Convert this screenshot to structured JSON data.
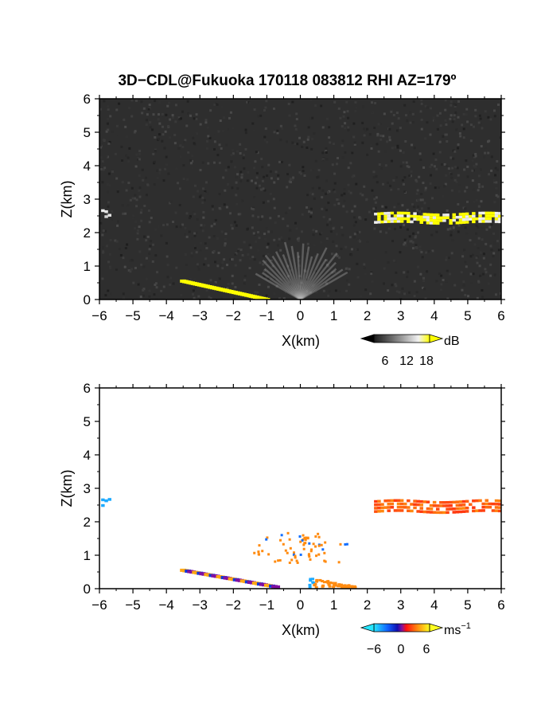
{
  "title": "3D−CDL@Fukuoka 170118 083812 RHI AZ=179º",
  "chart_data": [
    {
      "type": "heatmap",
      "panel": "top",
      "quantity": "signal intensity",
      "xlabel": "X(km)",
      "ylabel": "Z(km)",
      "xlim": [
        -6,
        6
      ],
      "ylim": [
        0,
        6
      ],
      "xticks": [
        "−6",
        "−5",
        "−4",
        "−3",
        "−2",
        "−1",
        "0",
        "1",
        "2",
        "3",
        "4",
        "5",
        "6"
      ],
      "yticks": [
        "0",
        "1",
        "2",
        "3",
        "4",
        "5",
        "6"
      ],
      "background_color": "#2e2e2e",
      "colorbar": {
        "unit": "dB",
        "ticks": [
          "6",
          "12",
          "18"
        ],
        "min": 0,
        "max": 20,
        "colors": [
          "#202020",
          "#ffffff",
          "#ffff00"
        ]
      },
      "features": [
        {
          "name": "left-edge echo",
          "x": [
            -5.95,
            -5.75
          ],
          "z": [
            2.5,
            2.65
          ],
          "level_db": 18
        },
        {
          "name": "elevated layer",
          "x": [
            2.2,
            6.0
          ],
          "z": [
            2.3,
            2.55
          ],
          "level_db": 20
        },
        {
          "name": "ground return",
          "x": [
            -3.5,
            -1.0
          ],
          "z": [
            0.55,
            0.0
          ],
          "level_db": 20
        },
        {
          "name": "clutter fan",
          "x": [
            -1.5,
            1.5
          ],
          "z": [
            0.0,
            1.7
          ],
          "level_db": 10
        }
      ]
    },
    {
      "type": "heatmap",
      "panel": "bottom",
      "quantity": "radial velocity",
      "xlabel": "X(km)",
      "ylabel": "Z(km)",
      "xlim": [
        -6,
        6
      ],
      "ylim": [
        0,
        6
      ],
      "xticks": [
        "−6",
        "−5",
        "−4",
        "−3",
        "−2",
        "−1",
        "0",
        "1",
        "2",
        "3",
        "4",
        "5",
        "6"
      ],
      "yticks": [
        "0",
        "1",
        "2",
        "3",
        "4",
        "5",
        "6"
      ],
      "background_color": "#ffffff",
      "colorbar": {
        "unit": "ms",
        "unit_exponent": "−1",
        "ticks": [
          "−6",
          "0",
          "6"
        ],
        "min": -9,
        "max": 9
      },
      "features": [
        {
          "name": "left-edge echo",
          "x": [
            -5.95,
            -5.75
          ],
          "z": [
            2.48,
            2.65
          ],
          "velocity": -7
        },
        {
          "name": "elevated layer",
          "x": [
            2.2,
            6.0
          ],
          "z": [
            2.3,
            2.6
          ],
          "velocity": 5
        },
        {
          "name": "ground return",
          "x": [
            -3.5,
            -0.7
          ],
          "z": [
            0.55,
            0.05
          ],
          "velocity": 0
        },
        {
          "name": "near-surface flow",
          "x": [
            0.2,
            1.6
          ],
          "z": [
            0.0,
            0.3
          ],
          "velocity": 5
        },
        {
          "name": "scattered echoes",
          "x": [
            -1.5,
            1.5
          ],
          "z": [
            0.8,
            1.7
          ],
          "velocity": 1
        }
      ]
    }
  ]
}
